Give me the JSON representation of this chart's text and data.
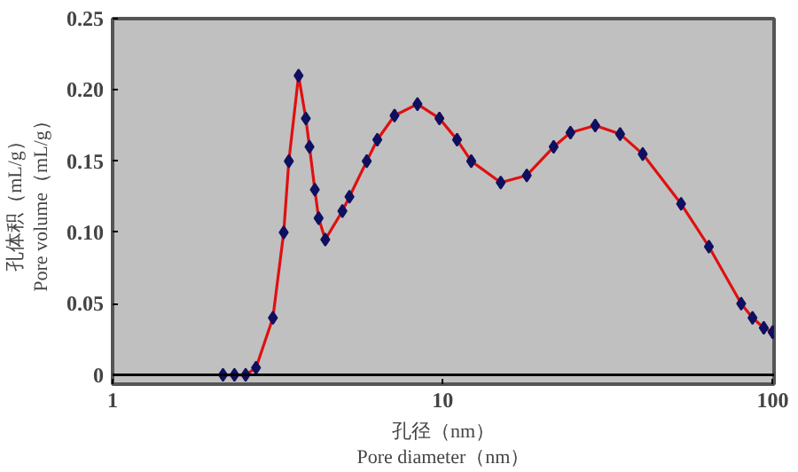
{
  "chart_data": {
    "type": "line",
    "xlabel": "孔径（nm）\nPore diameter（nm）",
    "ylabel": "孔体积（mL/g）\nPore volume（mL/g）",
    "x": [
      2.16,
      2.34,
      2.53,
      2.72,
      3.06,
      3.3,
      3.42,
      3.66,
      3.85,
      3.95,
      4.1,
      4.21,
      4.41,
      4.97,
      5.22,
      5.89,
      6.34,
      7.15,
      8.39,
      9.78,
      11.06,
      12.21,
      15.0,
      17.99,
      21.7,
      24.4,
      29.0,
      34.5,
      40.4,
      52.8,
      64.1,
      80.3,
      86.9,
      94.0,
      100
    ],
    "series": [
      {
        "color": "#e01010",
        "marker": "none",
        "values": [
          0,
          0,
          0,
          0.005,
          0.04,
          0.1,
          0.15,
          0.21,
          0.18,
          0.16,
          0.13,
          0.11,
          0.095,
          0.115,
          0.125,
          0.15,
          0.165,
          0.182,
          0.19,
          0.18,
          0.165,
          0.15,
          0.135,
          0.14,
          0.16,
          0.17,
          0.175,
          0.169,
          0.155,
          0.12,
          0.09,
          0.05,
          0.04,
          0.033,
          0.03
        ]
      },
      {
        "type": "scatter",
        "color": "#101060",
        "marker": "diamond",
        "values": [
          0,
          0,
          0,
          0.005,
          0.04,
          0.1,
          0.15,
          0.21,
          0.18,
          0.16,
          0.13,
          0.11,
          0.095,
          0.115,
          0.125,
          0.15,
          0.165,
          0.182,
          0.19,
          0.18,
          0.165,
          0.15,
          0.135,
          0.14,
          0.16,
          0.17,
          0.175,
          0.169,
          0.155,
          0.12,
          0.09,
          0.05,
          0.04,
          0.033,
          0.03
        ]
      }
    ],
    "log": "x",
    "xlim": [
      1,
      101
    ],
    "ylim": [
      -0.0065,
      0.25
    ],
    "xticks": [
      1,
      10,
      100
    ],
    "yticks": [
      0,
      0.05,
      {
        "value": 0.1,
        "label": "0.10"
      },
      0.15,
      {
        "value": 0.2,
        "label": "0.20"
      },
      0.25
    ],
    "ref_lines": [
      {
        "axis": "y",
        "value": 0,
        "color": "#000000"
      }
    ],
    "grid": false
  }
}
